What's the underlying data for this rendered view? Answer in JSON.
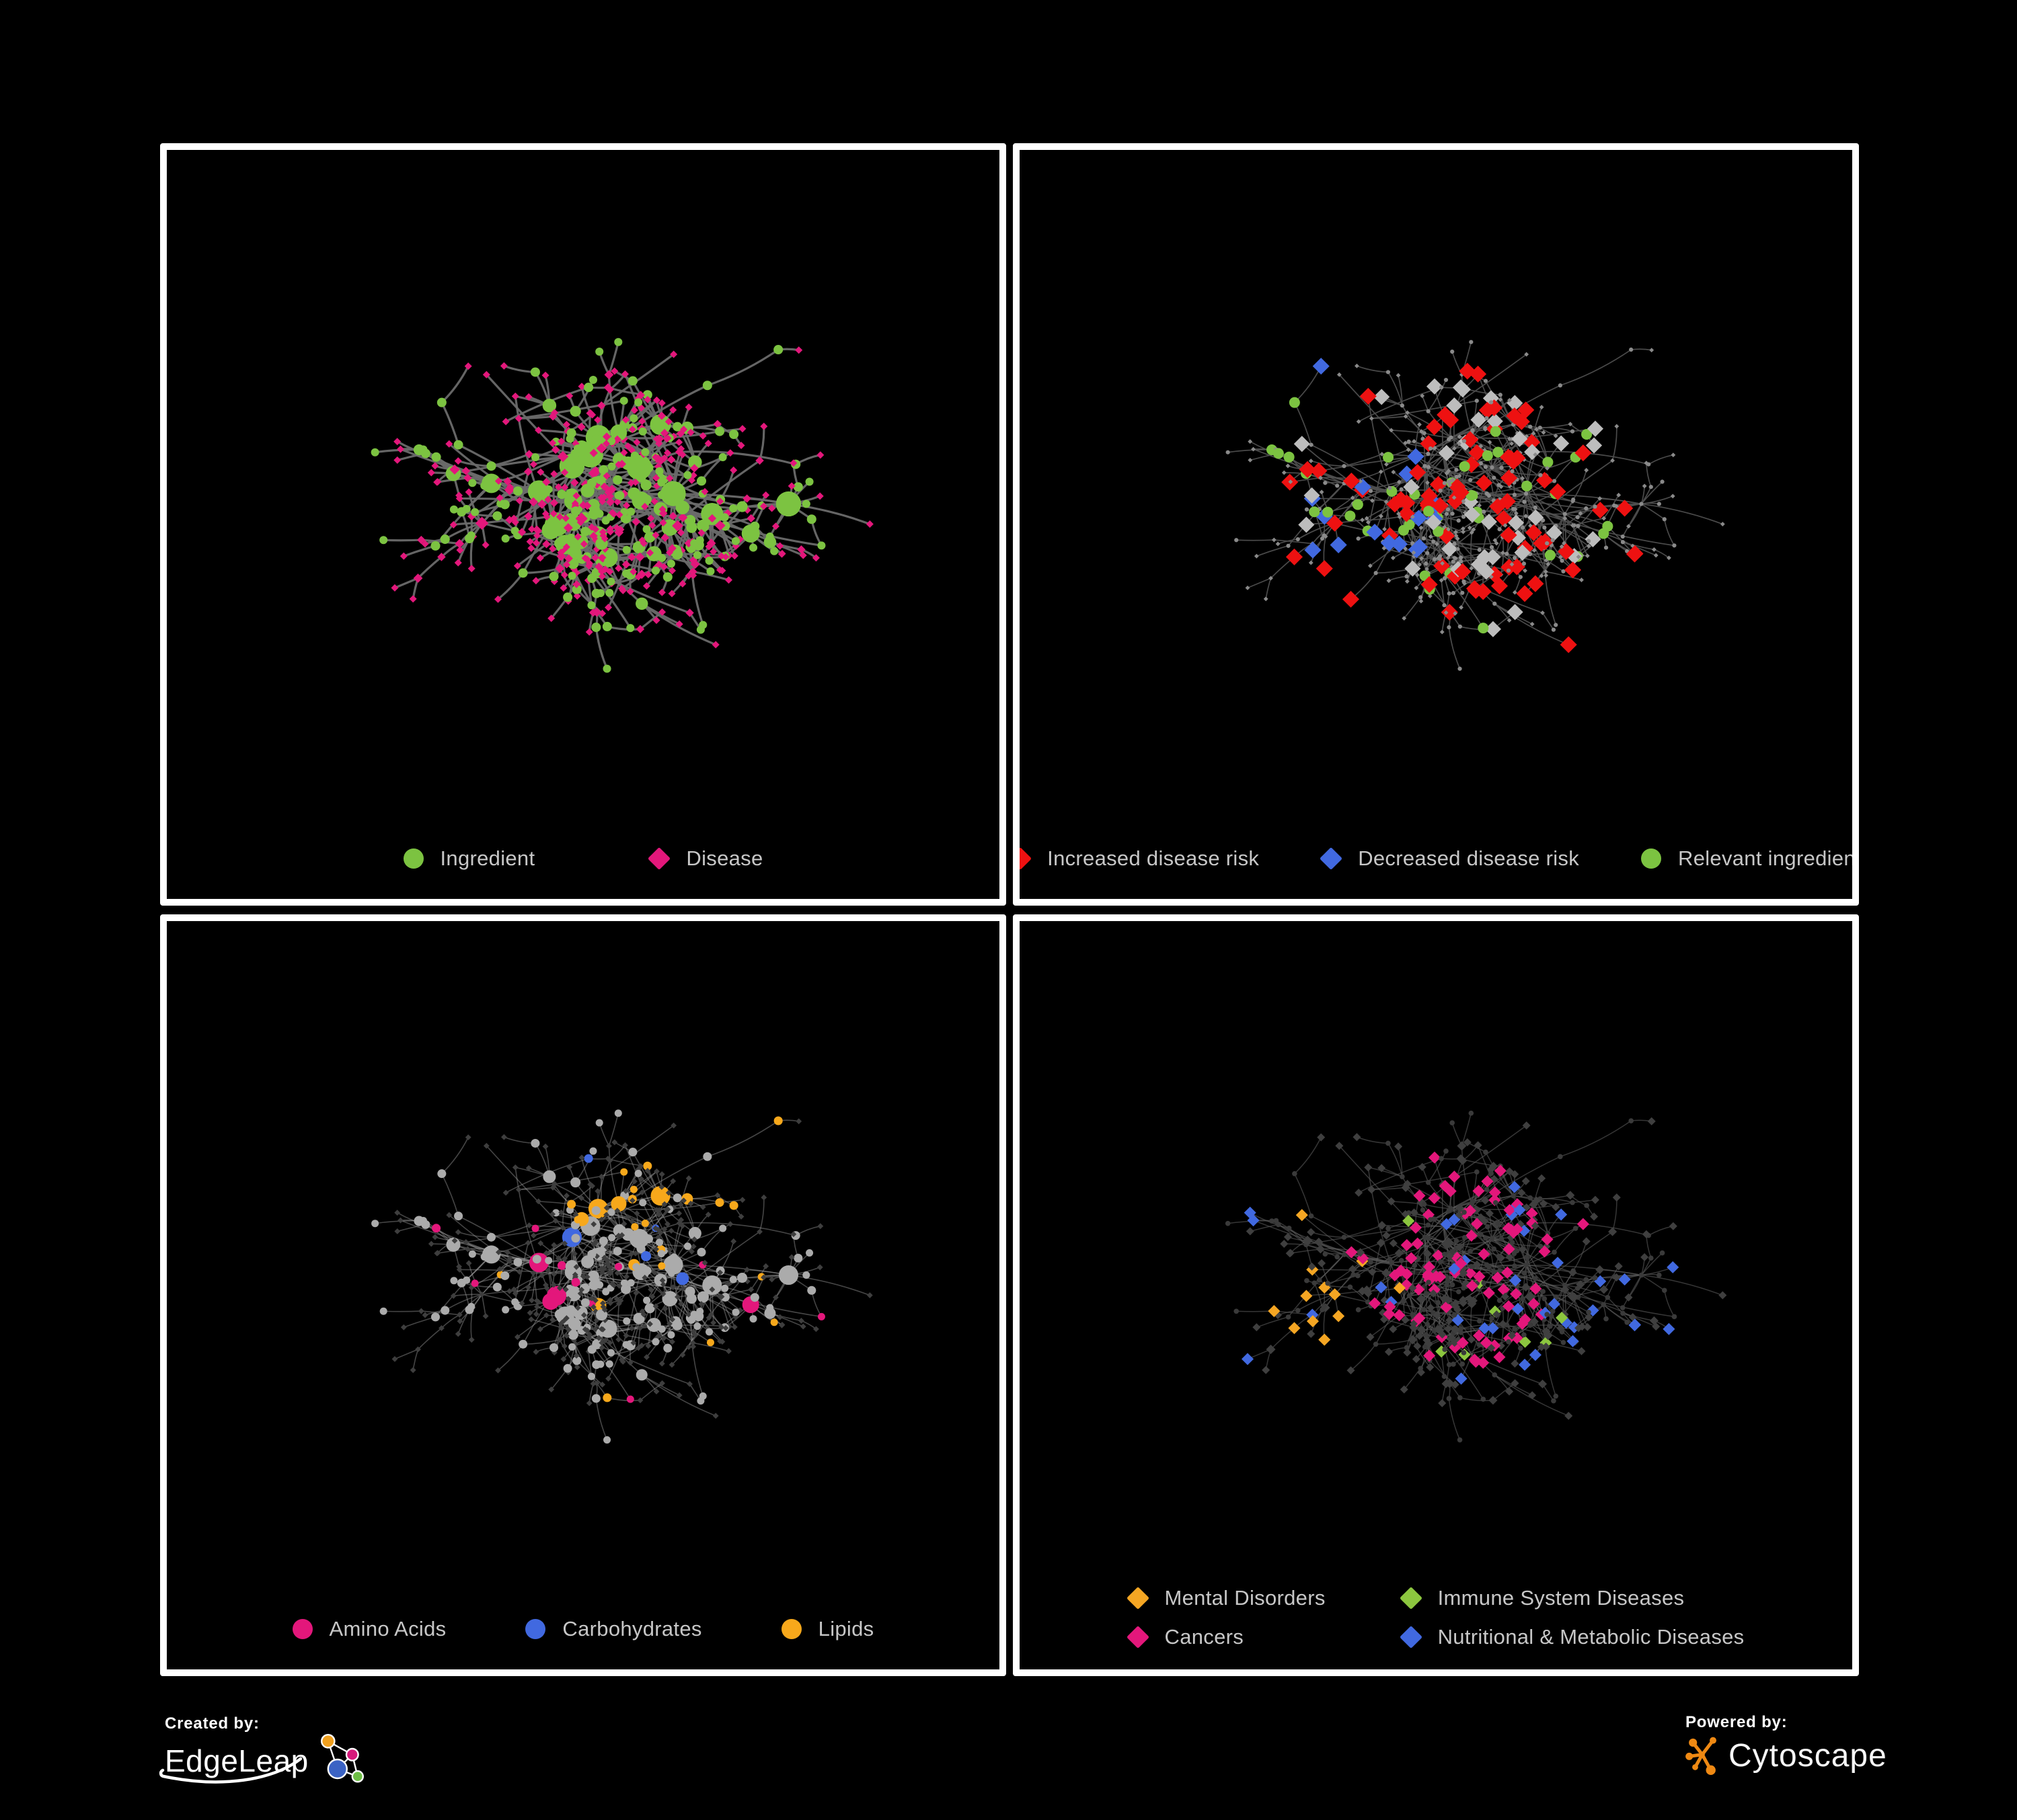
{
  "figure": {
    "background": "#000000",
    "panel_border_color": "#ffffff",
    "legend_text_color": "#c7c7c7"
  },
  "network": {
    "seed": 42,
    "node_count": 560,
    "extra_edge_count": 28
  },
  "panels": [
    {
      "id": "ingredient-disease",
      "legend": [
        {
          "label": "Ingredient",
          "shape": "circle",
          "color": "#7cc341"
        },
        {
          "label": "Disease",
          "shape": "diamond",
          "color": "#e3177b"
        }
      ],
      "scheme": {
        "mode": "types",
        "edge_color": "#6a6a6a",
        "edge_width": 3.2,
        "edge_opacity": 0.95,
        "ingredient_color": "#7cc341",
        "disease_color": "#e3177b"
      }
    },
    {
      "id": "disease-risk",
      "legend": [
        {
          "label": "Increased disease risk",
          "shape": "diamond",
          "color": "#ee1111"
        },
        {
          "label": "Decreased disease risk",
          "shape": "diamond",
          "color": "#4169e0"
        },
        {
          "label": "Relevant ingredient",
          "shape": "circle",
          "color": "#7cc341"
        }
      ],
      "scheme": {
        "mode": "risk",
        "edge_color": "#4e4e4e",
        "edge_width": 1.7,
        "edge_opacity": 0.95,
        "base_color": "#8a8a8a",
        "increased_color": "#ee1111",
        "decreased_color": "#4169e0",
        "neutral_color": "#bdbdbd",
        "ingredient_color": "#7cc341"
      }
    },
    {
      "id": "metabolite-classes",
      "legend": [
        {
          "label": "Amino Acids",
          "shape": "circle",
          "color": "#e3177b"
        },
        {
          "label": "Carbohydrates",
          "shape": "circle",
          "color": "#4169e0"
        },
        {
          "label": "Lipids",
          "shape": "circle",
          "color": "#f7a81b"
        }
      ],
      "scheme": {
        "mode": "metabolites",
        "edge_color": "#9a9a9a",
        "edge_width": 1.6,
        "edge_opacity": 0.45,
        "base_circle_color": "#ababab",
        "diamond_color": "#3e3e3e",
        "amino_color": "#e3177b",
        "carb_color": "#4169e0",
        "lipid_color": "#f7a81b"
      }
    },
    {
      "id": "disease-classes",
      "legend": [
        {
          "label": "Mental Disorders",
          "shape": "diamond",
          "color": "#f5a623"
        },
        {
          "label": "Immune System Diseases",
          "shape": "diamond",
          "color": "#8cc63f"
        },
        {
          "label": "Cancers",
          "shape": "diamond",
          "color": "#e3177b"
        },
        {
          "label": "Nutritional & Metabolic Diseases",
          "shape": "diamond",
          "color": "#4169e0"
        }
      ],
      "scheme": {
        "mode": "diseases",
        "edge_color": "#5a5a5a",
        "edge_width": 1.5,
        "edge_opacity": 0.6,
        "base_diamond_color": "#3f3f3f",
        "circle_color": "#3a3a3a",
        "mental_color": "#f5a623",
        "immune_color": "#8cc63f",
        "cancer_color": "#e3177b",
        "nutritional_color": "#4169e0"
      }
    }
  ],
  "branding": {
    "created_by_label": "Created by:",
    "created_by_name": "EdgeLeap",
    "powered_by_label": "Powered by:",
    "powered_by_name": "Cytoscape",
    "edgeleap_logo_colors": {
      "orange": "#f0a01e",
      "magenta": "#d6197b",
      "blue": "#3b63c4",
      "green": "#6dbe45"
    },
    "cytoscape_logo_color": "#ef8913"
  }
}
